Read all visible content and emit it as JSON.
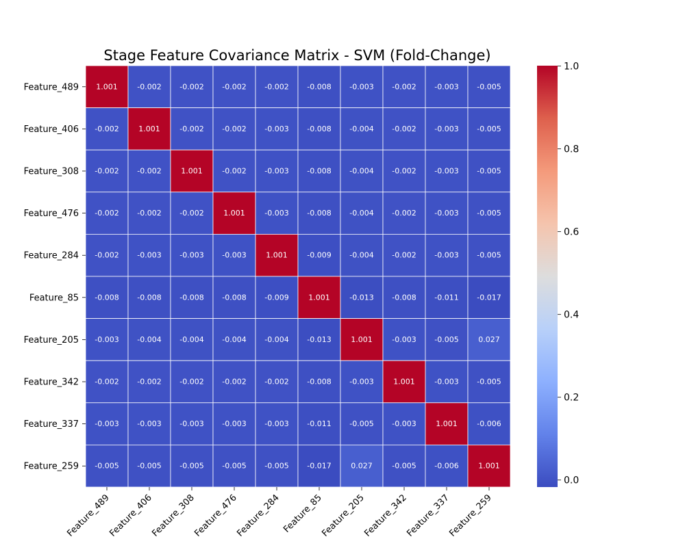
{
  "chart_data": {
    "type": "heatmap",
    "title": "Stage Feature Covariance Matrix - SVM (Fold-Change)",
    "xlabel": "",
    "ylabel": "",
    "row_labels": [
      "Feature_489",
      "Feature_406",
      "Feature_308",
      "Feature_476",
      "Feature_284",
      "Feature_85",
      "Feature_205",
      "Feature_342",
      "Feature_337",
      "Feature_259"
    ],
    "col_labels": [
      "Feature_489",
      "Feature_406",
      "Feature_308",
      "Feature_476",
      "Feature_284",
      "Feature_85",
      "Feature_205",
      "Feature_342",
      "Feature_337",
      "Feature_259"
    ],
    "values": [
      [
        1.001,
        -0.002,
        -0.002,
        -0.002,
        -0.002,
        -0.008,
        -0.003,
        -0.002,
        -0.003,
        -0.005
      ],
      [
        -0.002,
        1.001,
        -0.002,
        -0.002,
        -0.003,
        -0.008,
        -0.004,
        -0.002,
        -0.003,
        -0.005
      ],
      [
        -0.002,
        -0.002,
        1.001,
        -0.002,
        -0.003,
        -0.008,
        -0.004,
        -0.002,
        -0.003,
        -0.005
      ],
      [
        -0.002,
        -0.002,
        -0.002,
        1.001,
        -0.003,
        -0.008,
        -0.004,
        -0.002,
        -0.003,
        -0.005
      ],
      [
        -0.002,
        -0.003,
        -0.003,
        -0.003,
        1.001,
        -0.009,
        -0.004,
        -0.002,
        -0.003,
        -0.005
      ],
      [
        -0.008,
        -0.008,
        -0.008,
        -0.008,
        -0.009,
        1.001,
        -0.013,
        -0.008,
        -0.011,
        -0.017
      ],
      [
        -0.003,
        -0.004,
        -0.004,
        -0.004,
        -0.004,
        -0.013,
        1.001,
        -0.003,
        -0.005,
        0.027
      ],
      [
        -0.002,
        -0.002,
        -0.002,
        -0.002,
        -0.002,
        -0.008,
        -0.003,
        1.001,
        -0.003,
        -0.005
      ],
      [
        -0.003,
        -0.003,
        -0.003,
        -0.003,
        -0.003,
        -0.011,
        -0.005,
        -0.003,
        1.001,
        -0.006
      ],
      [
        -0.005,
        -0.005,
        -0.005,
        -0.005,
        -0.005,
        -0.017,
        0.027,
        -0.005,
        -0.006,
        1.001
      ]
    ],
    "colormap": "coolwarm",
    "colorbar": {
      "vmin": -0.017,
      "vmax": 1.001,
      "ticks": [
        0.0,
        0.2,
        0.4,
        0.6,
        0.8,
        1.0
      ],
      "tick_labels": [
        "0.0",
        "0.2",
        "0.4",
        "0.6",
        "0.8",
        "1.0"
      ]
    },
    "annotate_cells": true,
    "cell_gridline_color": "#ffffff"
  }
}
